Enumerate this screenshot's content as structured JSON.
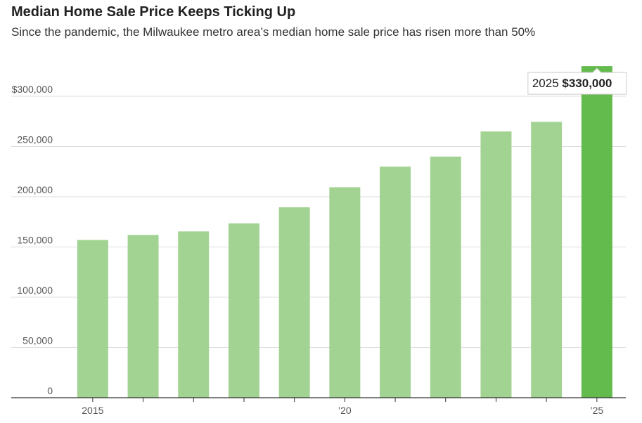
{
  "chart_data": {
    "type": "bar",
    "title": "Median Home Sale Price Keeps Ticking Up",
    "subtitle": "Since the pandemic, the Milwaukee metro area’s median home sale price has risen more than 50%",
    "xlabel": "",
    "ylabel": "",
    "categories": [
      "2015",
      "2016",
      "2017",
      "2018",
      "2019",
      "2020",
      "2021",
      "2022",
      "2023",
      "2024",
      "2025"
    ],
    "values": [
      157000,
      162000,
      165500,
      173500,
      189500,
      209500,
      230000,
      240000,
      265000,
      274500,
      330000
    ],
    "ylim": [
      0,
      330000
    ],
    "yticks": [
      {
        "value": 0,
        "label": "0"
      },
      {
        "value": 50000,
        "label": "50,000"
      },
      {
        "value": 100000,
        "label": "100,000"
      },
      {
        "value": 150000,
        "label": "150,000"
      },
      {
        "value": 200000,
        "label": "200,000"
      },
      {
        "value": 250000,
        "label": "250,000"
      },
      {
        "value": 300000,
        "label": "$300,000"
      }
    ],
    "xticks": [
      {
        "category": "2015",
        "label": "2015"
      },
      {
        "category": "2020",
        "label": "’20"
      },
      {
        "category": "2025",
        "label": "’25"
      }
    ],
    "grid": true,
    "highlight": {
      "category": "2025",
      "year_label": "2025",
      "value_label": "$330,000"
    },
    "colors": {
      "bar": "#a3d393",
      "highlight_bar": "#63bb4d",
      "grid": "#dddddd",
      "axis": "#333333",
      "callout_border": "#cccccc",
      "callout_bg": "#ffffff"
    }
  }
}
